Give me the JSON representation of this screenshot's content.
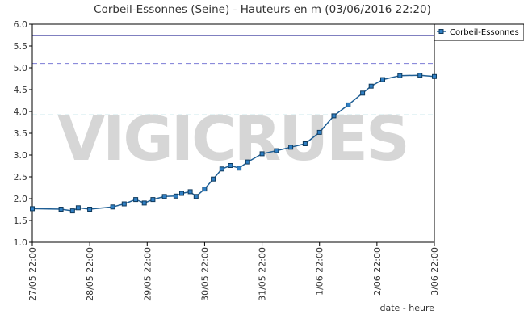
{
  "chart_data": {
    "type": "line",
    "title": "Corbeil-Essonnes (Seine) - Hauteurs en m (03/06/2016 22:20)",
    "xlabel": "date - heure",
    "ylabel": "",
    "ylim": [
      1.0,
      6.0
    ],
    "yticks": [
      "1.0",
      "1.5",
      "2.0",
      "2.5",
      "3.0",
      "3.5",
      "4.0",
      "4.5",
      "5.0",
      "5.5",
      "6.0"
    ],
    "xticks": [
      "27/05 22:00",
      "28/05 22:00",
      "29/05 22:00",
      "30/05 22:00",
      "31/05 22:00",
      "1/06 22:00",
      "2/06 22:00",
      "3/06 22:00"
    ],
    "x_unit": "days since 27/05 22:00",
    "watermark": "VIGICRUES",
    "legend": {
      "position": "top-right",
      "entries": [
        "Corbeil-Essonnes"
      ]
    },
    "reference_lines": [
      {
        "value": 5.74,
        "style": "solid",
        "color": "#000080"
      },
      {
        "value": 5.1,
        "style": "dashed",
        "color": "#7b7bd6"
      },
      {
        "value": 3.92,
        "style": "dashed",
        "color": "#3aa6b9"
      }
    ],
    "series": [
      {
        "name": "Corbeil-Essonnes",
        "color": "#1f5f95",
        "marker_fill": "#2f7fc4",
        "x": [
          0,
          0.5,
          0.7,
          0.8,
          1.0,
          1.4,
          1.6,
          1.8,
          1.95,
          2.1,
          2.3,
          2.5,
          2.6,
          2.75,
          2.85,
          3.0,
          3.15,
          3.3,
          3.45,
          3.6,
          3.75,
          4.0,
          4.25,
          4.5,
          4.75,
          5.0,
          5.25,
          5.5,
          5.75,
          5.9,
          6.1,
          6.4,
          6.75,
          7.0
        ],
        "values": [
          1.77,
          1.76,
          1.72,
          1.79,
          1.76,
          1.81,
          1.88,
          1.98,
          1.9,
          1.98,
          2.05,
          2.06,
          2.12,
          2.16,
          2.05,
          2.22,
          2.45,
          2.68,
          2.76,
          2.7,
          2.84,
          3.03,
          3.1,
          3.18,
          3.26,
          3.52,
          3.9,
          4.15,
          4.42,
          4.58,
          4.73,
          4.82,
          4.83,
          4.8
        ]
      }
    ]
  }
}
